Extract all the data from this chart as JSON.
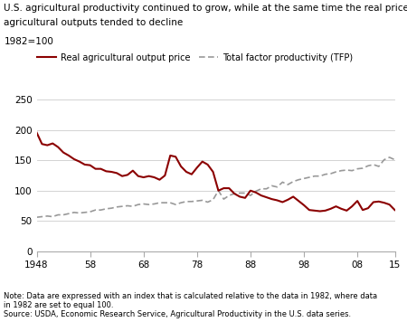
{
  "title_line1": "U.S. agricultural productivity continued to grow, while at the same time the real price of",
  "title_line2": "agricultural outputs tended to decline",
  "ylabel": "1982=100",
  "ylim": [
    0,
    250
  ],
  "yticks": [
    0,
    50,
    100,
    150,
    200,
    250
  ],
  "xlim": [
    1948,
    2015
  ],
  "xticks": [
    1948,
    1958,
    1968,
    1978,
    1988,
    1998,
    2008,
    2015
  ],
  "xticklabels": [
    "1948",
    "58",
    "68",
    "78",
    "88",
    "98",
    "08",
    "15"
  ],
  "note": "Note: Data are expressed with an index that is calculated relative to the data in 1982, where data\nin 1982 are set to equal 100.\nSource: USDA, Economic Research Service, Agricultural Productivity in the U.S. data series.",
  "line1_label": "Real agricultural output price",
  "line1_color": "#8B0000",
  "line2_label": "Total factor productivity (TFP)",
  "line2_color": "#999999",
  "background_color": "#ffffff",
  "real_price": [
    [
      1948,
      196
    ],
    [
      1949,
      177
    ],
    [
      1950,
      175
    ],
    [
      1951,
      178
    ],
    [
      1952,
      172
    ],
    [
      1953,
      163
    ],
    [
      1954,
      158
    ],
    [
      1955,
      152
    ],
    [
      1956,
      148
    ],
    [
      1957,
      143
    ],
    [
      1958,
      142
    ],
    [
      1959,
      136
    ],
    [
      1960,
      136
    ],
    [
      1961,
      132
    ],
    [
      1962,
      131
    ],
    [
      1963,
      129
    ],
    [
      1964,
      124
    ],
    [
      1965,
      126
    ],
    [
      1966,
      133
    ],
    [
      1967,
      124
    ],
    [
      1968,
      122
    ],
    [
      1969,
      124
    ],
    [
      1970,
      122
    ],
    [
      1971,
      118
    ],
    [
      1972,
      125
    ],
    [
      1973,
      158
    ],
    [
      1974,
      156
    ],
    [
      1975,
      140
    ],
    [
      1976,
      131
    ],
    [
      1977,
      127
    ],
    [
      1978,
      138
    ],
    [
      1979,
      148
    ],
    [
      1980,
      143
    ],
    [
      1981,
      131
    ],
    [
      1982,
      100
    ],
    [
      1983,
      104
    ],
    [
      1984,
      104
    ],
    [
      1985,
      95
    ],
    [
      1986,
      90
    ],
    [
      1987,
      88
    ],
    [
      1988,
      100
    ],
    [
      1989,
      97
    ],
    [
      1990,
      92
    ],
    [
      1991,
      89
    ],
    [
      1992,
      86
    ],
    [
      1993,
      84
    ],
    [
      1994,
      81
    ],
    [
      1995,
      85
    ],
    [
      1996,
      90
    ],
    [
      1997,
      83
    ],
    [
      1998,
      76
    ],
    [
      1999,
      68
    ],
    [
      2000,
      67
    ],
    [
      2001,
      66
    ],
    [
      2002,
      67
    ],
    [
      2003,
      70
    ],
    [
      2004,
      74
    ],
    [
      2005,
      70
    ],
    [
      2006,
      67
    ],
    [
      2007,
      74
    ],
    [
      2008,
      83
    ],
    [
      2009,
      68
    ],
    [
      2010,
      71
    ],
    [
      2011,
      81
    ],
    [
      2012,
      82
    ],
    [
      2013,
      80
    ],
    [
      2014,
      77
    ],
    [
      2015,
      68
    ]
  ],
  "tfp": [
    [
      1948,
      56
    ],
    [
      1949,
      57
    ],
    [
      1950,
      58
    ],
    [
      1951,
      57
    ],
    [
      1952,
      60
    ],
    [
      1953,
      60
    ],
    [
      1954,
      62
    ],
    [
      1955,
      64
    ],
    [
      1956,
      63
    ],
    [
      1957,
      64
    ],
    [
      1958,
      65
    ],
    [
      1959,
      68
    ],
    [
      1960,
      68
    ],
    [
      1961,
      70
    ],
    [
      1962,
      71
    ],
    [
      1963,
      73
    ],
    [
      1964,
      74
    ],
    [
      1965,
      75
    ],
    [
      1966,
      74
    ],
    [
      1967,
      77
    ],
    [
      1968,
      78
    ],
    [
      1969,
      77
    ],
    [
      1970,
      78
    ],
    [
      1971,
      80
    ],
    [
      1972,
      80
    ],
    [
      1973,
      80
    ],
    [
      1974,
      77
    ],
    [
      1975,
      80
    ],
    [
      1976,
      82
    ],
    [
      1977,
      82
    ],
    [
      1978,
      83
    ],
    [
      1979,
      84
    ],
    [
      1980,
      81
    ],
    [
      1981,
      85
    ],
    [
      1982,
      100
    ],
    [
      1983,
      86
    ],
    [
      1984,
      92
    ],
    [
      1985,
      95
    ],
    [
      1986,
      96
    ],
    [
      1987,
      96
    ],
    [
      1988,
      92
    ],
    [
      1989,
      99
    ],
    [
      1990,
      103
    ],
    [
      1991,
      103
    ],
    [
      1992,
      108
    ],
    [
      1993,
      106
    ],
    [
      1994,
      114
    ],
    [
      1995,
      110
    ],
    [
      1996,
      115
    ],
    [
      1997,
      118
    ],
    [
      1998,
      120
    ],
    [
      1999,
      122
    ],
    [
      2000,
      124
    ],
    [
      2001,
      124
    ],
    [
      2002,
      127
    ],
    [
      2003,
      128
    ],
    [
      2004,
      131
    ],
    [
      2005,
      133
    ],
    [
      2006,
      134
    ],
    [
      2007,
      133
    ],
    [
      2008,
      136
    ],
    [
      2009,
      137
    ],
    [
      2010,
      141
    ],
    [
      2011,
      143
    ],
    [
      2012,
      140
    ],
    [
      2013,
      151
    ],
    [
      2014,
      155
    ],
    [
      2015,
      151
    ]
  ]
}
